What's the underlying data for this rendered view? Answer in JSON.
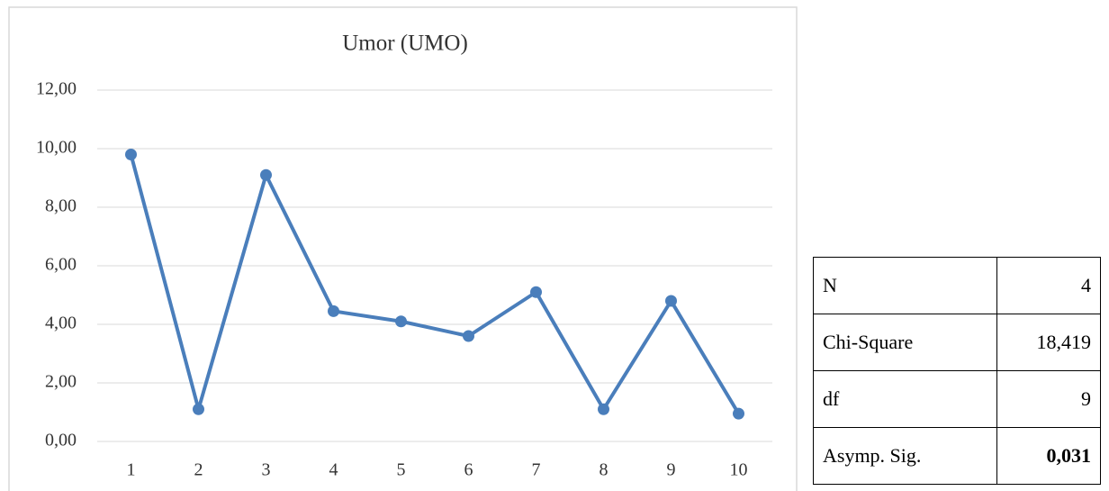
{
  "chart_data": {
    "type": "line",
    "title": "Umor (UMO)",
    "categories": [
      "1",
      "2",
      "3",
      "4",
      "5",
      "6",
      "7",
      "8",
      "9",
      "10"
    ],
    "series": [
      {
        "name": "Umor",
        "color": "#4a7ebb",
        "values": [
          9.8,
          1.1,
          9.1,
          4.45,
          4.1,
          3.6,
          5.1,
          1.1,
          4.8,
          0.95
        ]
      }
    ],
    "ylim": [
      0,
      12
    ],
    "yticks": [
      {
        "value": 0,
        "label": "0,00"
      },
      {
        "value": 2,
        "label": "2,00"
      },
      {
        "value": 4,
        "label": "4,00"
      },
      {
        "value": 6,
        "label": "6,00"
      },
      {
        "value": 8,
        "label": "8,00"
      },
      {
        "value": 10,
        "label": "10,00"
      },
      {
        "value": 12,
        "label": "12,00"
      }
    ],
    "grid": true
  },
  "table": {
    "rows": [
      [
        "N",
        "4"
      ],
      [
        "Chi-Square",
        "18,419"
      ],
      [
        "df",
        "9"
      ],
      [
        "Asymp. Sig.",
        "0,031"
      ]
    ]
  }
}
